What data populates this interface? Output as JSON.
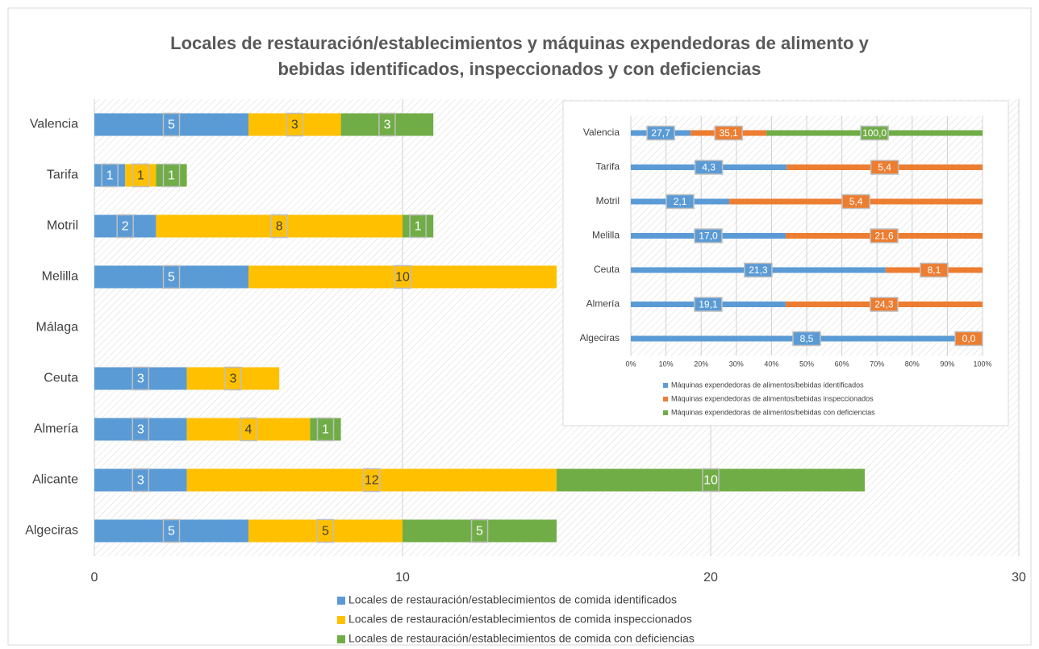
{
  "chart_data": [
    {
      "type": "bar",
      "orientation": "horizontal",
      "stacked": true,
      "title": "Locales de restauración/establecimientos y máquinas expendedoras de alimento y bebidas  identificados, inspeccionados y con deficiencias",
      "categories": [
        "Valencia",
        "Tarifa",
        "Motril",
        "Melilla",
        "Málaga",
        "Ceuta",
        "Almería",
        "Alicante",
        "Algeciras"
      ],
      "series": [
        {
          "name": "Locales de restauración/establecimientos de comida identificados",
          "color": "#5b9bd5",
          "values": [
            5,
            1,
            2,
            5,
            null,
            3,
            3,
            3,
            5
          ]
        },
        {
          "name": "Locales de restauración/establecimientos de comida inspeccionados",
          "color": "#ffc000",
          "values": [
            3,
            1,
            8,
            10,
            null,
            3,
            4,
            12,
            5
          ]
        },
        {
          "name": "Locales de restauración/establecimientos de comida con deficiencias",
          "color": "#70ad47",
          "values": [
            3,
            1,
            1,
            null,
            null,
            null,
            1,
            10,
            5
          ]
        }
      ],
      "xlim": [
        0,
        30
      ],
      "xticks": [
        0,
        10,
        20,
        30
      ],
      "grid": true,
      "legend": "bottom"
    },
    {
      "type": "bar",
      "orientation": "horizontal",
      "stacked": "percent",
      "categories": [
        "Valencia",
        "Tarifa",
        "Motril",
        "Melilla",
        "Ceuta",
        "Almería",
        "Algeciras"
      ],
      "series": [
        {
          "name": "Máquinas expendedoras de alimentos/bebidas identificados",
          "color": "#5b9bd5",
          "values": [
            27.7,
            4.3,
            2.1,
            17.0,
            21.3,
            19.1,
            8.5
          ],
          "value_labels": [
            "27,7",
            "4,3",
            "2,1",
            "17,0",
            "21,3",
            "19,1",
            "8,5"
          ]
        },
        {
          "name": "Máquinas expendedoras de alimentos/bebidas inspeccionados",
          "color": "#ed7d31",
          "values": [
            35.1,
            5.4,
            5.4,
            21.6,
            8.1,
            24.3,
            0.0
          ],
          "value_labels": [
            "35,1",
            "5,4",
            "5,4",
            "21,6",
            "8,1",
            "24,3",
            "0,0"
          ]
        },
        {
          "name": "Máquinas expendedoras de alimentos/bebidas con deficiencias",
          "color": "#70ad47",
          "values": [
            100.0,
            null,
            null,
            null,
            null,
            null,
            null
          ],
          "value_labels": [
            "100,0",
            null,
            null,
            null,
            null,
            null,
            null
          ]
        }
      ],
      "xlim": [
        0,
        100
      ],
      "xticks": [
        {
          "value": 0,
          "label": "0%"
        },
        {
          "value": 10,
          "label": "10%"
        },
        {
          "value": 20,
          "label": "20%"
        },
        {
          "value": 30,
          "label": "30%"
        },
        {
          "value": 40,
          "label": "40%"
        },
        {
          "value": 50,
          "label": "50%"
        },
        {
          "value": 60,
          "label": "60%"
        },
        {
          "value": 70,
          "label": "70%"
        },
        {
          "value": 80,
          "label": "80%"
        },
        {
          "value": 90,
          "label": "90%"
        },
        {
          "value": 100,
          "label": "100%"
        }
      ],
      "grid": true,
      "legend": "bottom"
    }
  ]
}
